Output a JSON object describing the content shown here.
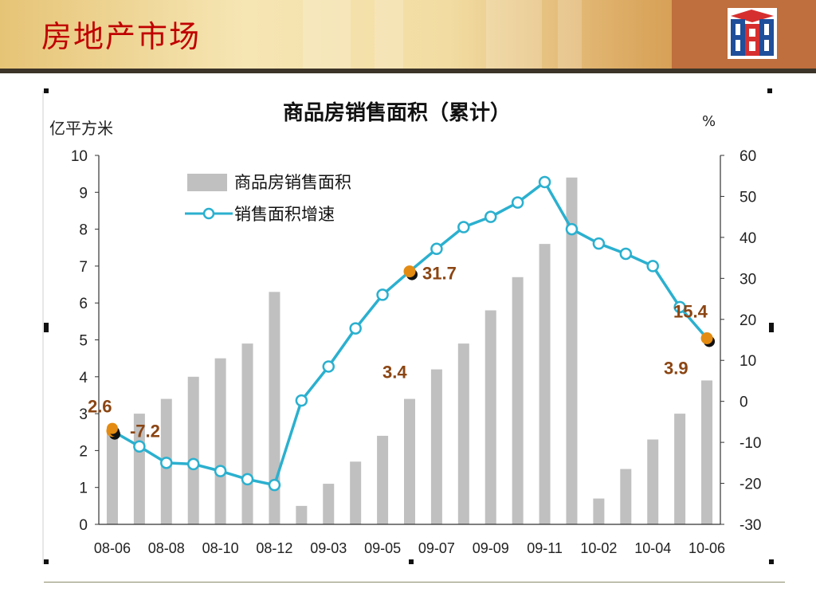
{
  "slide": {
    "title": "房地产市场"
  },
  "logo": {
    "icon": "company-logo-icon",
    "colors": [
      "#1f4e9a",
      "#d62f2f",
      "#ffffff"
    ]
  },
  "colors": {
    "bars": "#c0c0c0",
    "line": "#2bb0cf",
    "marker_fill": "#ffffff",
    "highlight": "#e38b12",
    "label": "#8b4513",
    "title_red": "#c00000"
  },
  "chart_data": {
    "type": "bar",
    "title": "商品房销售面积（累计）",
    "ylabel": "亿平方米",
    "y2label": "%",
    "ylim": [
      0,
      10
    ],
    "y2lim": [
      -30,
      60
    ],
    "yticks": [
      "10",
      "9",
      "8",
      "7",
      "6",
      "5",
      "4",
      "3",
      "2",
      "1",
      "0"
    ],
    "y2ticks": [
      "60",
      "50",
      "40",
      "30",
      "20",
      "10",
      "0",
      "-10",
      "-20",
      "-30"
    ],
    "categories": [
      "08-06",
      "08-07",
      "08-08",
      "08-09",
      "08-10",
      "08-11",
      "08-12",
      "09-02",
      "09-03",
      "09-04",
      "09-05",
      "09-06",
      "09-07",
      "09-08",
      "09-09",
      "09-10",
      "09-11",
      "09-12",
      "10-02",
      "10-03",
      "10-04",
      "10-05",
      "10-06"
    ],
    "tick_labels": [
      "08-06",
      "",
      "08-08",
      "",
      "08-10",
      "",
      "08-12",
      "",
      "09-03",
      "",
      "09-05",
      "",
      "09-07",
      "",
      "09-09",
      "",
      "09-11",
      "",
      "10-02",
      "",
      "10-04",
      "",
      "10-06"
    ],
    "series": [
      {
        "name": "商品房销售面积",
        "type": "bar",
        "axis": "left",
        "values": [
          2.6,
          3.0,
          3.4,
          4.0,
          4.5,
          4.9,
          6.3,
          0.5,
          1.1,
          1.7,
          2.4,
          3.4,
          4.2,
          4.9,
          5.8,
          6.7,
          7.6,
          9.4,
          0.7,
          1.5,
          2.3,
          3.0,
          3.9
        ]
      },
      {
        "name": "销售面积增速",
        "type": "line",
        "axis": "right",
        "values": [
          -7.2,
          -11,
          -15,
          -15.3,
          -17,
          -19,
          -20.4,
          0.2,
          8.5,
          17.8,
          26,
          31.7,
          37.2,
          42.5,
          45,
          48.5,
          53.5,
          42,
          38.5,
          36,
          33,
          23,
          15.4
        ]
      }
    ],
    "annotations": [
      {
        "text": "2.6"
      },
      {
        "text": "-7.2"
      },
      {
        "text": "3.4"
      },
      {
        "text": "31.7"
      },
      {
        "text": "3.9"
      },
      {
        "text": "15.4"
      }
    ],
    "legend_position": "top-left",
    "grid": false
  }
}
